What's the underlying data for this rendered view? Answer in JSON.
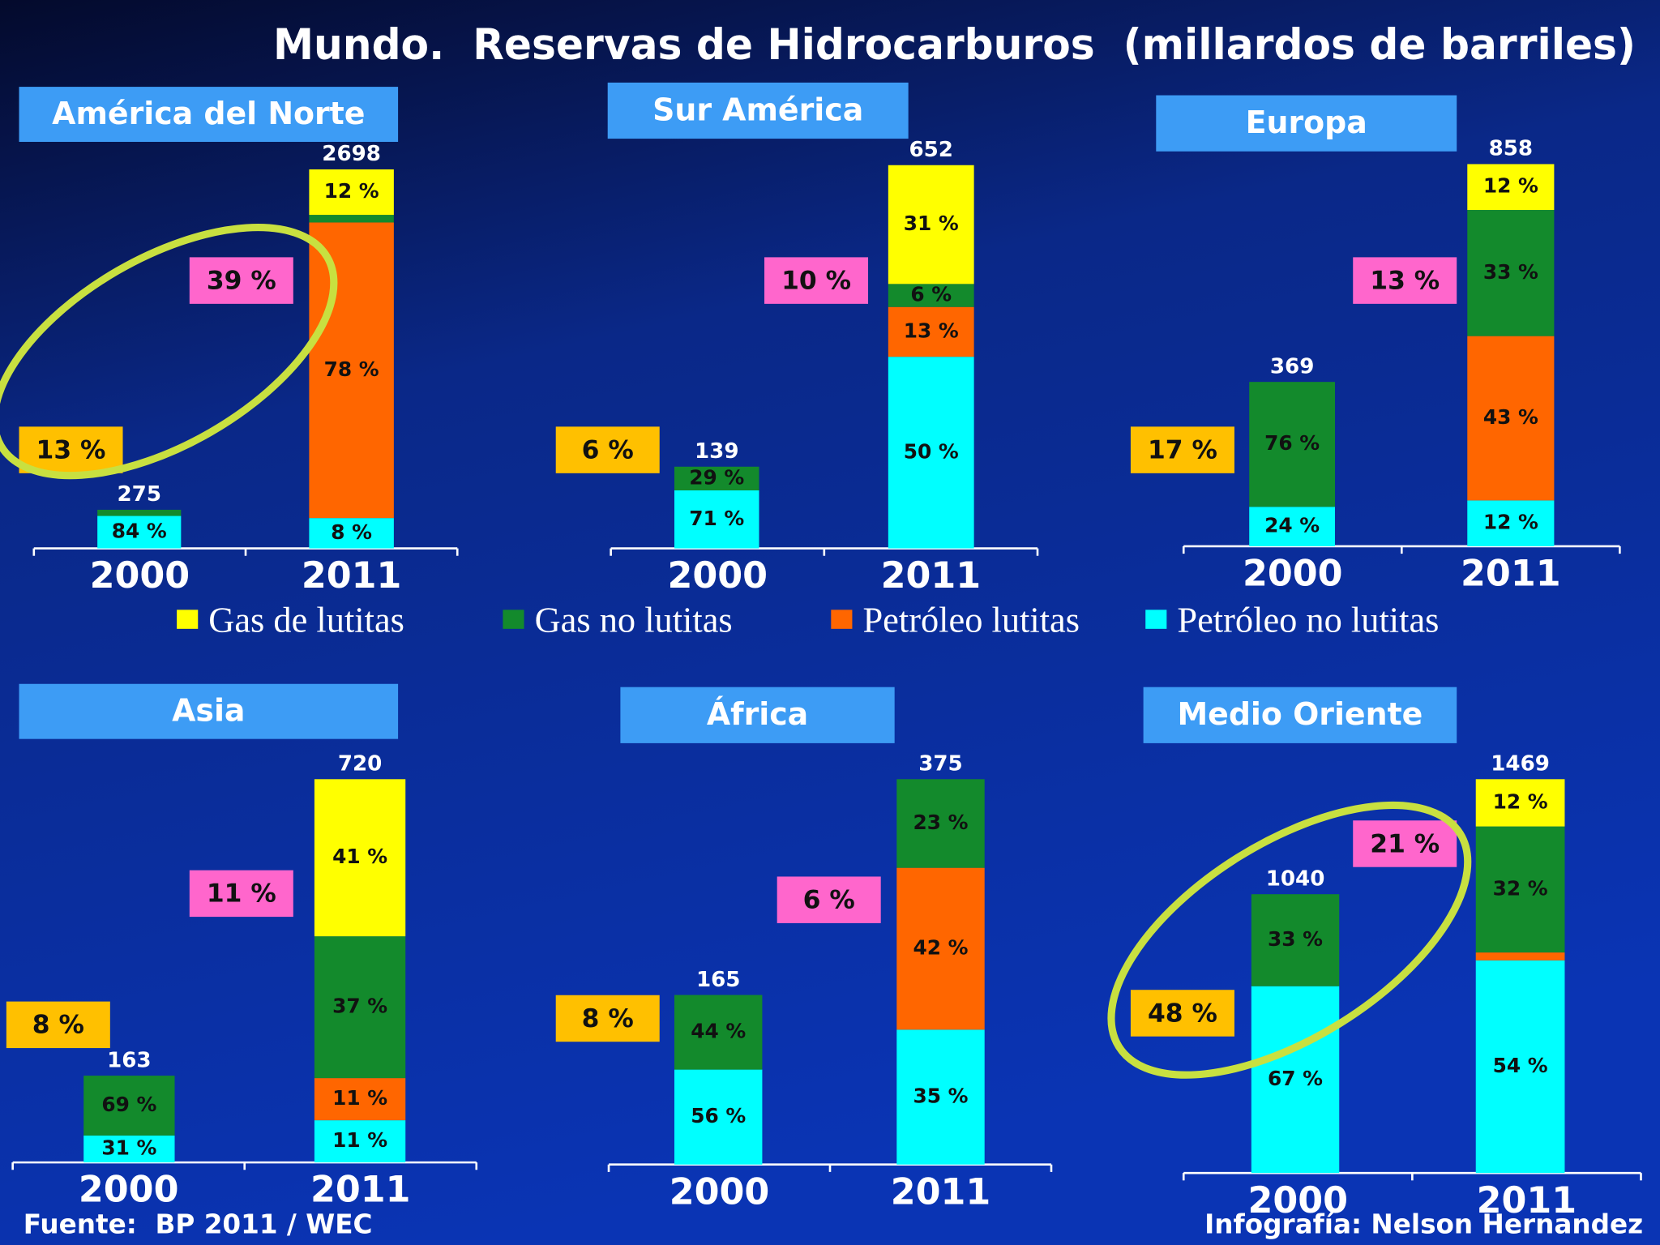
{
  "title": "Mundo.  Reservas de Hidrocarburos  (millardos de barriles)",
  "legend": [
    {
      "name": "Gas de lutitas",
      "color": "#ffff00"
    },
    {
      "name": "Gas no lutitas",
      "color": "#138a2c"
    },
    {
      "name": "Petróleo lutitas",
      "color": "#ff6600"
    },
    {
      "name": "Petróleo no lutitas",
      "color": "#00ffff"
    }
  ],
  "source": "Fuente:  BP 2011 / WEC",
  "credit": "Infografía: Nelson Hernandez",
  "chart_data": [
    {
      "type": "bar",
      "title": "América del Norte",
      "categories": [
        "2000",
        "2011"
      ],
      "totals": [
        275,
        2698
      ],
      "callouts": [
        13,
        39
      ],
      "callout_labels": [
        "13 %",
        "39 %"
      ],
      "highlight": true,
      "series": [
        {
          "values": [
            null,
            12
          ],
          "value_labels": [
            null,
            "12 %"
          ]
        },
        {
          "values": [
            16,
            2
          ],
          "value_labels": [
            null,
            null
          ]
        },
        {
          "values": [
            null,
            78
          ],
          "value_labels": [
            null,
            "78 %"
          ]
        },
        {
          "values": [
            84,
            8
          ],
          "value_labels": [
            "84 %",
            "8 %"
          ]
        }
      ]
    },
    {
      "type": "bar",
      "title": "Sur América",
      "categories": [
        "2000",
        "2011"
      ],
      "totals": [
        139,
        652
      ],
      "callouts": [
        6,
        10
      ],
      "callout_labels": [
        "6 %",
        "10 %"
      ],
      "series": [
        {
          "values": [
            null,
            31
          ],
          "value_labels": [
            null,
            "31 %"
          ]
        },
        {
          "values": [
            29,
            6
          ],
          "value_labels": [
            "29 %",
            "6 %"
          ]
        },
        {
          "values": [
            null,
            13
          ],
          "value_labels": [
            null,
            "13 %"
          ]
        },
        {
          "values": [
            71,
            50
          ],
          "value_labels": [
            "71 %",
            "50 %"
          ]
        }
      ]
    },
    {
      "type": "bar",
      "title": "Europa",
      "categories": [
        "2000",
        "2011"
      ],
      "totals": [
        369,
        858
      ],
      "callouts": [
        17,
        13
      ],
      "callout_labels": [
        "17 %",
        "13 %"
      ],
      "series": [
        {
          "values": [
            null,
            12
          ],
          "value_labels": [
            null,
            "12 %"
          ]
        },
        {
          "values": [
            76,
            33
          ],
          "value_labels": [
            "76 %",
            "33 %"
          ]
        },
        {
          "values": [
            null,
            43
          ],
          "value_labels": [
            null,
            "43 %"
          ]
        },
        {
          "values": [
            24,
            12
          ],
          "value_labels": [
            "24 %",
            "12 %"
          ]
        }
      ]
    },
    {
      "type": "bar",
      "title": "Asia",
      "categories": [
        "2000",
        "2011"
      ],
      "totals": [
        163,
        720
      ],
      "callouts": [
        8,
        11
      ],
      "callout_labels": [
        "8 %",
        "11 %"
      ],
      "series": [
        {
          "values": [
            null,
            41
          ],
          "value_labels": [
            null,
            "41 %"
          ]
        },
        {
          "values": [
            69,
            37
          ],
          "value_labels": [
            "69 %",
            "37 %"
          ]
        },
        {
          "values": [
            null,
            11
          ],
          "value_labels": [
            null,
            "11 %"
          ]
        },
        {
          "values": [
            31,
            11
          ],
          "value_labels": [
            "31 %",
            "11 %"
          ]
        }
      ]
    },
    {
      "type": "bar",
      "title": "África",
      "categories": [
        "2000",
        "2011"
      ],
      "totals": [
        165,
        375
      ],
      "callouts": [
        8,
        6
      ],
      "callout_labels": [
        "8 %",
        "6 %"
      ],
      "series": [
        {
          "values": [
            null,
            null
          ],
          "value_labels": [
            null,
            null
          ]
        },
        {
          "values": [
            44,
            23
          ],
          "value_labels": [
            "44 %",
            "23 %"
          ]
        },
        {
          "values": [
            null,
            42
          ],
          "value_labels": [
            null,
            "42 %"
          ]
        },
        {
          "values": [
            56,
            35
          ],
          "value_labels": [
            "56 %",
            "35 %"
          ]
        }
      ]
    },
    {
      "type": "bar",
      "title": "Medio Oriente",
      "categories": [
        "2000",
        "2011"
      ],
      "totals": [
        1040,
        1469
      ],
      "callouts": [
        48,
        21
      ],
      "callout_labels": [
        "48 %",
        "21 %"
      ],
      "highlight": true,
      "series": [
        {
          "values": [
            null,
            12
          ],
          "value_labels": [
            null,
            "12 %"
          ]
        },
        {
          "values": [
            33,
            32
          ],
          "value_labels": [
            "33 %",
            "32 %"
          ]
        },
        {
          "values": [
            null,
            2
          ],
          "value_labels": [
            null,
            null
          ]
        },
        {
          "values": [
            67,
            54
          ],
          "value_labels": [
            "67 %",
            "54 %"
          ]
        }
      ]
    }
  ]
}
